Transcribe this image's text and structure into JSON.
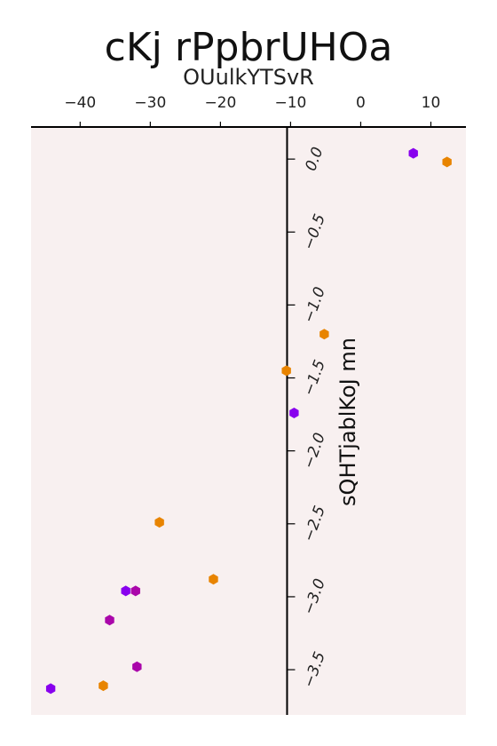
{
  "chart_data": {
    "type": "scatter",
    "title": "cKj rPpbrUHOa",
    "xlabel": "OUulkYTSvR",
    "ylabel": "sQHTjablKoJ mn",
    "xlim": [
      -47,
      15
    ],
    "ylim": [
      0.22,
      -3.81
    ],
    "x_ticks": [
      -40,
      -30,
      -20,
      -10,
      0,
      10
    ],
    "x_tick_labels": [
      "−40",
      "−30",
      "−20",
      "−10",
      "0",
      "10"
    ],
    "y_ticks": [
      0.0,
      -0.5,
      -1.0,
      -1.5,
      -2.0,
      -2.5,
      -3.0,
      -3.5
    ],
    "y_tick_labels": [
      "0.0",
      "−0.5",
      "−1.0",
      "−1.5",
      "−2.0",
      "−2.5",
      "−3.0",
      "−3.5"
    ],
    "grid": false,
    "background": "#f8f0f0",
    "marker": "hexagon",
    "series": [
      {
        "color": "#8800ee",
        "points": [
          [
            7.5,
            0.04
          ],
          [
            -9.5,
            -1.74
          ],
          [
            -33.5,
            -2.96
          ],
          [
            -44.2,
            -3.63
          ]
        ]
      },
      {
        "color": "#e88400",
        "points": [
          [
            12.3,
            -0.02
          ],
          [
            -5.2,
            -1.2
          ],
          [
            -10.6,
            -1.45
          ],
          [
            -28.7,
            -2.49
          ],
          [
            -21.0,
            -2.88
          ],
          [
            -36.7,
            -3.61
          ]
        ]
      },
      {
        "color": "#aa06aa",
        "points": [
          [
            -32.1,
            -2.96
          ],
          [
            -35.8,
            -3.16
          ],
          [
            -31.9,
            -3.48
          ]
        ]
      }
    ]
  }
}
